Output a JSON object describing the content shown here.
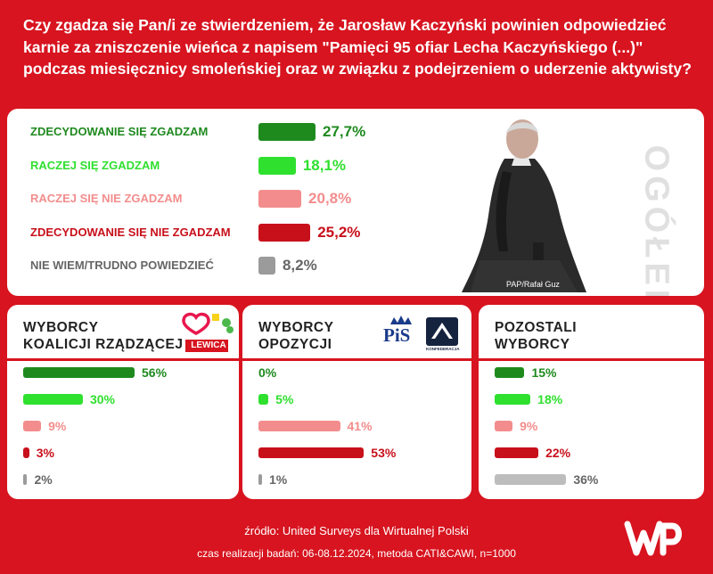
{
  "question": "Czy zgadza się Pan/i ze stwierdzeniem, że Jarosław Kaczyński powinien odpowiedzieć karnie za zniszczenie wieńca z napisem \"Pamięci 95 ofiar Lecha Kaczyńskiego (...)\" podczas miesięcznicy smoleńskiej oraz w związku z podejrzeniem o uderzenie aktywisty?",
  "colors": {
    "background": "#d7141f",
    "strongly_agree": "#1e8a1e",
    "agree": "#2fe02f",
    "disagree": "#f38d8d",
    "strongly_disagree": "#c8101b",
    "dont_know": "#9b9b9b",
    "dont_know_light": "#bdbdbd"
  },
  "overall": {
    "side_label": "OGÓŁEM",
    "photo_credit": "PAP/Rafał Guz",
    "rows": [
      {
        "label": "ZDECYDOWANIE SIĘ ZGADZAM",
        "value_text": "27,7%"
      },
      {
        "label": "RACZEJ SIĘ ZGADZAM",
        "value_text": "18,1%"
      },
      {
        "label": "RACZEJ SIĘ NIE ZGADZAM",
        "value_text": "20,8%"
      },
      {
        "label": "ZDECYDOWANIE SIĘ NIE ZGADZAM",
        "value_text": "25,2%"
      },
      {
        "label": "NIE WIEM/TRUDNO POWIEDZIEĆ",
        "value_text": "8,2%"
      }
    ]
  },
  "groups": [
    {
      "title_line1": "WYBORCY",
      "title_line2": "KOALICJI RZĄDZĄCEJ",
      "logo_text": "LEWICA",
      "values_text": [
        "56%",
        "30%",
        "9%",
        "3%",
        "2%"
      ]
    },
    {
      "title_line1": "WYBORCY",
      "title_line2": "OPOZYCJI",
      "logo_text": "PiS",
      "logo_text2": "KONFEDERACJA",
      "values_text": [
        "0%",
        "5%",
        "41%",
        "53%",
        "1%"
      ]
    },
    {
      "title_line1": "POZOSTALI",
      "title_line2": "WYBORCY",
      "values_text": [
        "15%",
        "18%",
        "9%",
        "22%",
        "36%"
      ]
    }
  ],
  "chart_data": [
    {
      "type": "bar",
      "orientation": "horizontal",
      "title": "OGÓŁEM",
      "categories": [
        "ZDECYDOWANIE SIĘ ZGADZAM",
        "RACZEJ SIĘ ZGADZAM",
        "RACZEJ SIĘ NIE ZGADZAM",
        "ZDECYDOWANIE SIĘ NIE ZGADZAM",
        "NIE WIEM/TRUDNO POWIEDZIEĆ"
      ],
      "values": [
        27.7,
        18.1,
        20.8,
        25.2,
        8.2
      ],
      "unit": "%"
    },
    {
      "type": "bar",
      "orientation": "horizontal",
      "title": "WYBORCY KOALICJI RZĄDZĄCEJ",
      "categories": [
        "ZDECYDOWANIE SIĘ ZGADZAM",
        "RACZEJ SIĘ ZGADZAM",
        "RACZEJ SIĘ NIE ZGADZAM",
        "ZDECYDOWANIE SIĘ NIE ZGADZAM",
        "NIE WIEM/TRUDNO POWIEDZIEĆ"
      ],
      "values": [
        56,
        30,
        9,
        3,
        2
      ],
      "unit": "%"
    },
    {
      "type": "bar",
      "orientation": "horizontal",
      "title": "WYBORCY OPOZYCJI",
      "categories": [
        "ZDECYDOWANIE SIĘ ZGADZAM",
        "RACZEJ SIĘ ZGADZAM",
        "RACZEJ SIĘ NIE ZGADZAM",
        "ZDECYDOWANIE SIĘ NIE ZGADZAM",
        "NIE WIEM/TRUDNO POWIEDZIEĆ"
      ],
      "values": [
        0,
        5,
        41,
        53,
        1
      ],
      "unit": "%"
    },
    {
      "type": "bar",
      "orientation": "horizontal",
      "title": "POZOSTALI WYBORCY",
      "categories": [
        "ZDECYDOWANIE SIĘ ZGADZAM",
        "RACZEJ SIĘ ZGADZAM",
        "RACZEJ SIĘ NIE ZGADZAM",
        "ZDECYDOWANIE SIĘ NIE ZGADZAM",
        "NIE WIEM/TRUDNO POWIEDZIEĆ"
      ],
      "values": [
        15,
        18,
        9,
        22,
        36
      ],
      "unit": "%"
    }
  ],
  "footer": {
    "source": "źródło: United Surveys dla Wirtualnej Polski",
    "meta": "czas realizacji badań: 06-08.12.2024, metoda CATI&CAWI, n=1000",
    "logo_text": "WP"
  }
}
